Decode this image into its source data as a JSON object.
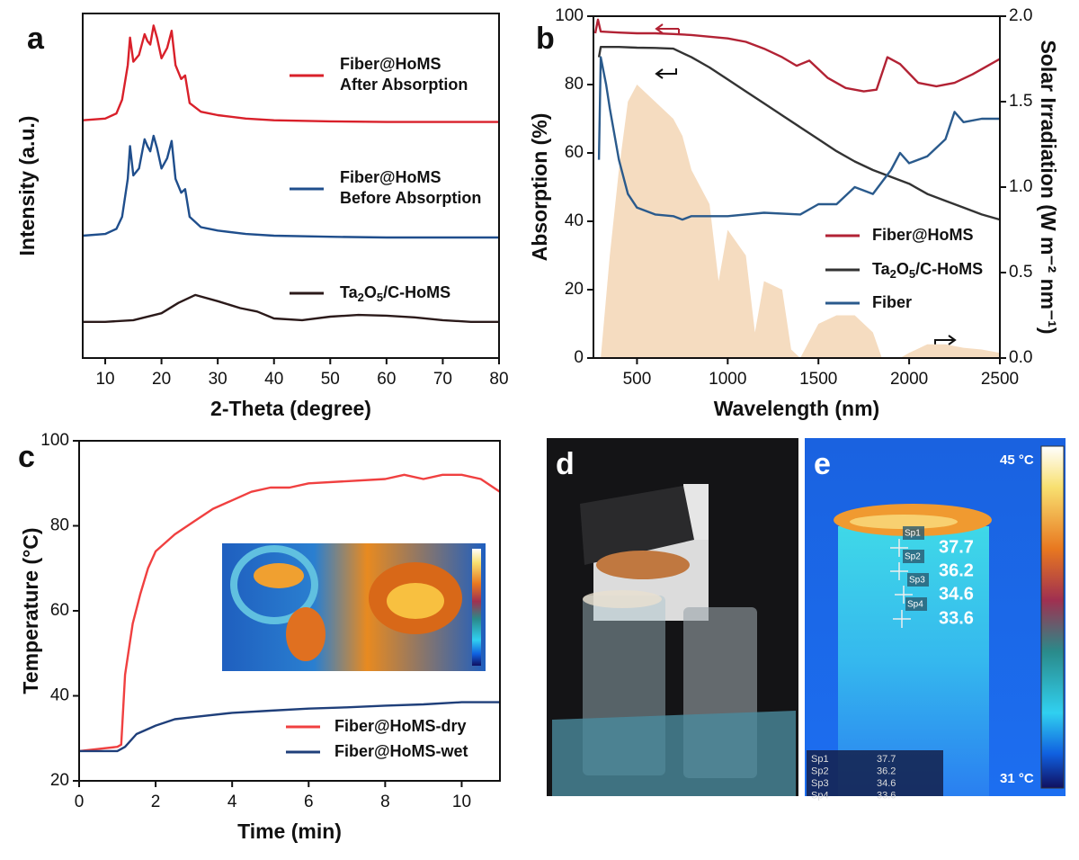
{
  "chart_data": [
    {
      "type": "line",
      "panel_label": "a",
      "xlabel": "2-Theta (degree)",
      "ylabel": "Intensity (a.u.)",
      "xlim": [
        6,
        80
      ],
      "xticks": [
        10,
        20,
        30,
        40,
        50,
        60,
        70,
        80
      ],
      "ylim": [
        0,
        100
      ],
      "series": [
        {
          "name": "Fiber@HoMS\nAfter Absorption",
          "color": "#d9202a",
          "x": [
            6,
            10,
            12,
            13,
            14,
            14.4,
            15,
            16,
            17,
            17.5,
            18,
            18.6,
            19.2,
            20,
            21,
            21.8,
            22.5,
            23.5,
            24.2,
            25,
            27,
            30,
            35,
            40,
            50,
            60,
            70,
            80
          ],
          "values": [
            69,
            69.5,
            71,
            75,
            85,
            93,
            86,
            88,
            94,
            92,
            91,
            96.5,
            93,
            87,
            90,
            95,
            85,
            81,
            82,
            74,
            71.5,
            70.5,
            69.5,
            69,
            68.7,
            68.5,
            68.5,
            68.5
          ]
        },
        {
          "name": "Fiber@HoMS\nBefore Absorption",
          "color": "#1f4e8c",
          "x": [
            6,
            10,
            12,
            13,
            14,
            14.4,
            15,
            16,
            17,
            17.5,
            18,
            18.6,
            19.2,
            20,
            21,
            21.8,
            22.5,
            23.5,
            24.2,
            25,
            27,
            30,
            35,
            40,
            50,
            60,
            70,
            80
          ],
          "values": [
            35.5,
            36,
            37.5,
            41,
            52,
            61.5,
            53,
            55,
            63.5,
            61.5,
            60,
            64.5,
            61,
            55,
            58,
            63,
            52,
            48,
            49,
            41,
            38,
            37,
            36,
            35.5,
            35.2,
            35,
            35,
            35
          ]
        },
        {
          "name": "Ta2O5/C-HoMS",
          "color": "#2b1a1a",
          "x": [
            6,
            10,
            15,
            20,
            23,
            26,
            30,
            34,
            37,
            40,
            45,
            50,
            55,
            60,
            65,
            70,
            75,
            80
          ],
          "values": [
            10.5,
            10.5,
            11,
            13,
            16,
            18.3,
            16.5,
            14.5,
            13.5,
            11.5,
            11,
            12,
            12.5,
            12.3,
            11.8,
            11,
            10.5,
            10.5
          ]
        }
      ]
    },
    {
      "type": "line",
      "panel_label": "b",
      "xlabel": "Wavelength (nm)",
      "ylabel": "Absorption (%)",
      "y2label": "Solar Irradiation (W m⁻² nm⁻¹)",
      "xlim": [
        260,
        2500
      ],
      "xticks": [
        500,
        1000,
        1500,
        2000,
        2500
      ],
      "ylim": [
        0,
        100
      ],
      "yticks": [
        0,
        20,
        40,
        60,
        80,
        100
      ],
      "y2lim": [
        0,
        2
      ],
      "y2ticks": [
        {
          "value": 0,
          "label": "0.0"
        },
        0.5,
        {
          "value": 1,
          "label": "1.0"
        },
        1.5,
        {
          "value": 2,
          "label": "2.0"
        }
      ],
      "series": [
        {
          "color": "#f5dcc0",
          "axis": "y2",
          "area": true,
          "x": [
            300,
            350,
            400,
            450,
            500,
            600,
            700,
            750,
            800,
            900,
            950,
            1000,
            1100,
            1150,
            1200,
            1300,
            1350,
            1400,
            1500,
            1600,
            1700,
            1800,
            1850,
            1950,
            2000,
            2100,
            2200,
            2300,
            2400,
            2500
          ],
          "values": [
            0,
            0.6,
            1.1,
            1.5,
            1.6,
            1.5,
            1.4,
            1.3,
            1.1,
            0.9,
            0.45,
            0.75,
            0.6,
            0.15,
            0.45,
            0.4,
            0.05,
            0,
            0.2,
            0.25,
            0.25,
            0.15,
            0,
            0,
            0.03,
            0.08,
            0.08,
            0.06,
            0.05,
            0.03
          ]
        },
        {
          "name": "Fiber@HoMS",
          "color": "#b22234",
          "x": [
            270,
            285,
            300,
            400,
            500,
            600,
            700,
            800,
            900,
            1000,
            1100,
            1200,
            1300,
            1380,
            1450,
            1550,
            1650,
            1750,
            1820,
            1880,
            1950,
            2050,
            2150,
            2250,
            2350,
            2450,
            2500
          ],
          "values": [
            95,
            99,
            95.5,
            95.2,
            95,
            95,
            94.8,
            94.5,
            94,
            93.5,
            92.5,
            90.5,
            88,
            85.5,
            87,
            82,
            79,
            78,
            78.5,
            88,
            86,
            80.5,
            79.5,
            80.5,
            83,
            86,
            87.5
          ]
        },
        {
          "name": "Ta2O5/C-HoMS",
          "color": "#333333",
          "x": [
            290,
            300,
            400,
            500,
            600,
            700,
            800,
            900,
            1000,
            1100,
            1200,
            1300,
            1400,
            1500,
            1600,
            1700,
            1800,
            1900,
            2000,
            2100,
            2200,
            2300,
            2400,
            2500
          ],
          "values": [
            88,
            91,
            91,
            90.8,
            90.7,
            90.5,
            88,
            85,
            81.5,
            78,
            74.5,
            71,
            67.5,
            64,
            60.5,
            57.5,
            55,
            53,
            51,
            48,
            46,
            44,
            42,
            40.5
          ]
        },
        {
          "name": "Fiber",
          "color": "#2a5a8c",
          "x": [
            290,
            300,
            330,
            350,
            400,
            450,
            500,
            600,
            700,
            750,
            800,
            1000,
            1200,
            1400,
            1500,
            1600,
            1700,
            1800,
            1900,
            1950,
            2000,
            2100,
            2200,
            2250,
            2300,
            2400,
            2500
          ],
          "values": [
            58,
            88,
            80,
            73,
            58,
            48,
            44,
            42,
            41.5,
            40.5,
            41.5,
            41.5,
            42.5,
            42,
            45,
            45,
            50,
            48,
            55,
            60,
            57,
            59,
            64,
            72,
            69,
            70,
            70
          ]
        }
      ]
    },
    {
      "type": "line",
      "panel_label": "c",
      "xlabel": "Time (min)",
      "ylabel": "Temperature (°C)",
      "xlim": [
        0,
        11
      ],
      "xticks": [
        0,
        2,
        4,
        6,
        8,
        10
      ],
      "ylim": [
        20,
        100
      ],
      "yticks": [
        20,
        40,
        60,
        80,
        100
      ],
      "series": [
        {
          "name": "Fiber@HoMS-dry",
          "color": "#f04040",
          "x": [
            0,
            0.5,
            1,
            1.1,
            1.2,
            1.4,
            1.6,
            1.8,
            2,
            2.5,
            3,
            3.5,
            4,
            4.5,
            5,
            5.5,
            6,
            7,
            8,
            8.5,
            9,
            9.5,
            10,
            10.5,
            11
          ],
          "values": [
            27,
            27.5,
            28,
            28.5,
            45,
            57,
            64,
            70,
            74,
            78,
            81,
            84,
            86,
            88,
            89,
            89,
            90,
            90.5,
            91,
            92,
            91,
            92,
            92,
            91,
            88
          ]
        },
        {
          "name": "Fiber@HoMS-wet",
          "color": "#1f3f7a",
          "x": [
            0,
            1,
            1.2,
            1.5,
            2,
            2.5,
            3,
            4,
            5,
            6,
            7,
            8,
            9,
            10,
            11
          ],
          "values": [
            27,
            27,
            28,
            31,
            33,
            34.5,
            35,
            36,
            36.5,
            37,
            37.3,
            37.7,
            38,
            38.5,
            38.5
          ]
        }
      ]
    }
  ],
  "photo": {
    "label": "d"
  },
  "thermal": {
    "label": "e",
    "scale_max": "45 °C",
    "scale_min": "31 °C",
    "spots": [
      {
        "name": "Sp1",
        "value": 37.7
      },
      {
        "name": "Sp2",
        "value": 36.2
      },
      {
        "name": "Sp3",
        "value": 34.6
      },
      {
        "name": "Sp4",
        "value": 33.6
      }
    ]
  }
}
